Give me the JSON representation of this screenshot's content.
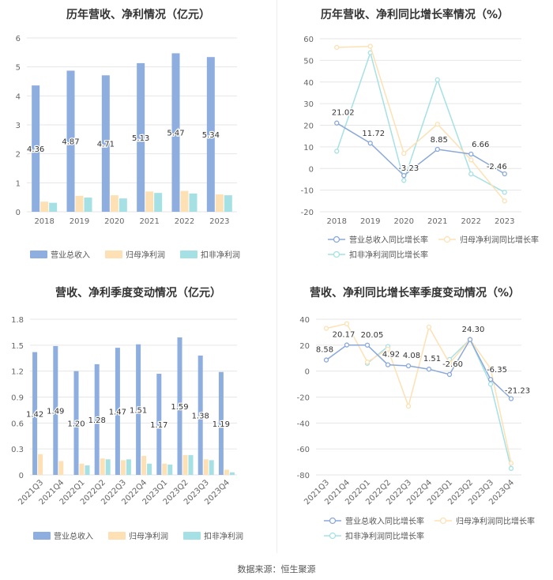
{
  "source": "数据来源：恒生聚源",
  "colors": {
    "revenue": "#8eaee0",
    "netProfit": "#fde1b4",
    "deducted": "#a5e1e4",
    "revLine": "#8aa9d8"
  },
  "chart_data": [
    {
      "type": "bar",
      "title": "历年营收、净利情况（亿元）",
      "categories": [
        "2018",
        "2019",
        "2020",
        "2021",
        "2022",
        "2023"
      ],
      "ylim": [
        0,
        6
      ],
      "yticks": [
        "0",
        "1",
        "2",
        "3",
        "4",
        "5",
        "6"
      ],
      "grid": true,
      "legend_position": "bottom",
      "series": [
        {
          "name": "营业总收入",
          "values": [
            4.36,
            4.87,
            4.71,
            5.13,
            5.47,
            5.34
          ],
          "labels": [
            "4.36",
            "4.87",
            "4.71",
            "5.13",
            "5.47",
            "5.34"
          ]
        },
        {
          "name": "归母净利润",
          "values": [
            0.35,
            0.55,
            0.57,
            0.7,
            0.72,
            0.6
          ]
        },
        {
          "name": "扣非净利润",
          "values": [
            0.31,
            0.49,
            0.46,
            0.65,
            0.63,
            0.57
          ]
        }
      ]
    },
    {
      "type": "line",
      "title": "历年营收、净利同比增长率情况（%）",
      "categories": [
        "2018",
        "2019",
        "2020",
        "2021",
        "2022",
        "2023"
      ],
      "ylim": [
        -20,
        60
      ],
      "yticks": [
        "-20",
        "-10",
        "0",
        "10",
        "20",
        "30",
        "40",
        "50",
        "60"
      ],
      "grid": true,
      "legend_position": "bottom",
      "series": [
        {
          "name": "营业总收入同比增长率",
          "values": [
            21.02,
            11.72,
            -3.23,
            8.85,
            6.66,
            -2.46
          ],
          "labels": [
            "21.02",
            "11.72",
            "-3.23",
            "8.85",
            "6.66",
            "-2.46"
          ]
        },
        {
          "name": "归母净利润同比增长率",
          "values": [
            56.0,
            56.5,
            7.0,
            20.5,
            4.0,
            -15.0
          ]
        },
        {
          "name": "扣非净利润同比增长率",
          "values": [
            8.0,
            53.5,
            -5.5,
            41.0,
            -2.5,
            -11.0
          ]
        }
      ]
    },
    {
      "type": "bar",
      "title": "营收、净利季度变动情况（亿元）",
      "categories": [
        "2021Q3",
        "2021Q4",
        "2022Q1",
        "2022Q2",
        "2022Q3",
        "2022Q4",
        "2023Q1",
        "2023Q2",
        "2023Q3",
        "2023Q4"
      ],
      "ylim": [
        0,
        1.8
      ],
      "yticks": [
        "0",
        "0.3",
        "0.6",
        "0.9",
        "1.2",
        "1.5",
        "1.8"
      ],
      "grid": true,
      "legend_position": "bottom",
      "series": [
        {
          "name": "营业总收入",
          "values": [
            1.42,
            1.49,
            1.2,
            1.28,
            1.47,
            1.51,
            1.17,
            1.59,
            1.38,
            1.19
          ],
          "labels": [
            "1.42",
            "1.49",
            "1.20",
            "1.28",
            "1.47",
            "1.51",
            "1.17",
            "1.59",
            "1.38",
            "1.19"
          ]
        },
        {
          "name": "归母净利润",
          "values": [
            0.24,
            0.16,
            0.13,
            0.19,
            0.17,
            0.22,
            0.13,
            0.23,
            0.18,
            0.06
          ]
        },
        {
          "name": "扣非净利润",
          "values": [
            0.0,
            0.0,
            0.11,
            0.18,
            0.18,
            0.13,
            0.12,
            0.23,
            0.17,
            0.03
          ]
        }
      ]
    },
    {
      "type": "line",
      "title": "营收、净利同比增长率季度变动情况（%）",
      "categories": [
        "2021Q3",
        "2021Q4",
        "2022Q1",
        "2022Q2",
        "2022Q3",
        "2022Q4",
        "2023Q1",
        "2023Q2",
        "2023Q3",
        "2023Q4"
      ],
      "ylim": [
        -80,
        40
      ],
      "yticks": [
        "-80",
        "-60",
        "-40",
        "-20",
        "0",
        "20",
        "40"
      ],
      "grid": true,
      "legend_position": "bottom",
      "series": [
        {
          "name": "营业总收入同比增长率",
          "values": [
            8.58,
            20.17,
            20.05,
            4.92,
            4.08,
            1.51,
            -2.6,
            24.3,
            -6.35,
            -21.23
          ],
          "labels": [
            "8.58",
            "20.17",
            "20.05",
            "4.92",
            "4.08",
            "1.51",
            "-2.60",
            "24.30",
            "-6.35",
            "-21.23"
          ]
        },
        {
          "name": "归母净利润同比增长率",
          "values": [
            33.0,
            36.5,
            7.0,
            17.0,
            -27.0,
            34.0,
            6.0,
            24.5,
            2.0,
            -71.0
          ]
        },
        {
          "name": "扣非净利润同比增长率",
          "values": [
            null,
            null,
            6.0,
            19.0,
            null,
            null,
            9.0,
            24.5,
            -10.0,
            -75.0
          ]
        }
      ]
    }
  ]
}
